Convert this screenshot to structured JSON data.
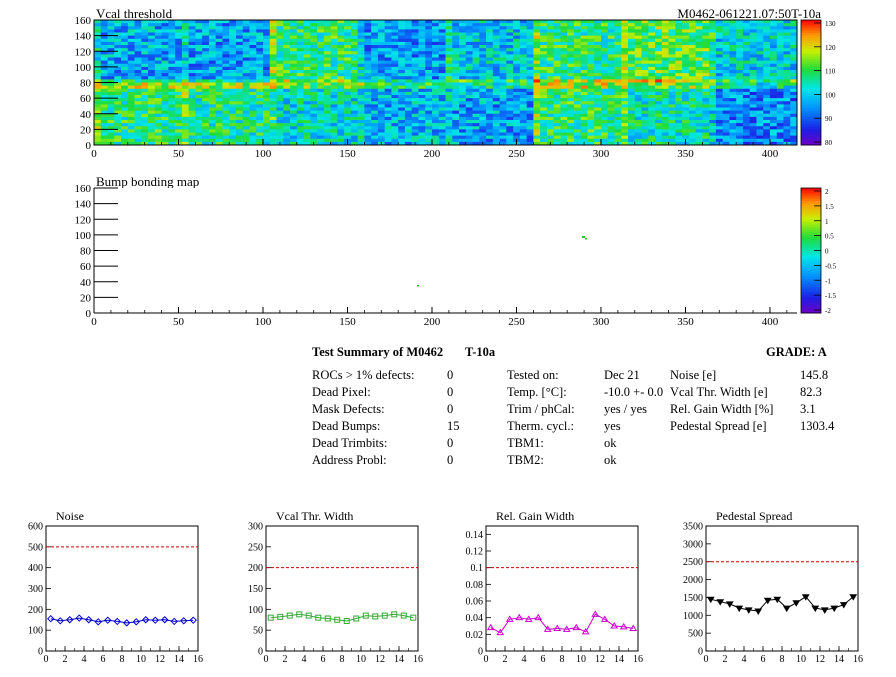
{
  "maps": [
    {
      "id": "vcal",
      "title": "Vcal threshold",
      "xticks": [
        "0",
        "50",
        "100",
        "150",
        "200",
        "250",
        "300",
        "350",
        "400"
      ],
      "yticks": [
        "0",
        "20",
        "40",
        "60",
        "80",
        "100",
        "120",
        "140",
        "160"
      ],
      "xlim": [
        0,
        416
      ],
      "ylim": [
        0,
        160
      ],
      "palette_labels": [
        "130",
        "120",
        "110",
        "100",
        "90",
        "80"
      ],
      "zlim": [
        80,
        130
      ]
    },
    {
      "id": "bump",
      "title": "Bump bonding map",
      "xticks": [
        "0",
        "50",
        "100",
        "150",
        "200",
        "250",
        "300",
        "350",
        "400"
      ],
      "yticks": [
        "0",
        "20",
        "40",
        "60",
        "80",
        "100",
        "120",
        "140",
        "160"
      ],
      "xlim": [
        0,
        416
      ],
      "ylim": [
        0,
        160
      ],
      "palette_labels": [
        "2",
        "1.5",
        "1",
        "0.5",
        "0",
        "-0.5",
        "-1",
        "-1.5",
        "-2"
      ],
      "zlim": [
        -2,
        2
      ]
    }
  ],
  "header_right": "M0462-061221.07:50T-10a",
  "summary": {
    "title": "Test Summary of M0462",
    "temp_id": "T-10a",
    "grade": "GRADE:  A",
    "col1": [
      {
        "label": "ROCs > 1% defects:",
        "value": "0"
      },
      {
        "label": "Dead Pixel:",
        "value": "0"
      },
      {
        "label": "Mask Defects:",
        "value": "0"
      },
      {
        "label": "Dead Bumps:",
        "value": "15"
      },
      {
        "label": "Dead Trimbits:",
        "value": "0"
      },
      {
        "label": "Address Probl:",
        "value": "0"
      }
    ],
    "col2": [
      {
        "label": "Tested on:",
        "value": "Dec 21"
      },
      {
        "label": "Temp. [°C]:",
        "value": "-10.0 +- 0.0"
      },
      {
        "label": "Trim / phCal:",
        "value": "yes / yes"
      },
      {
        "label": "Therm. cycl.:",
        "value": "yes"
      },
      {
        "label": "TBM1:",
        "value": "ok"
      },
      {
        "label": "TBM2:",
        "value": "ok"
      }
    ],
    "col3": [
      {
        "label": "Noise [e]",
        "value": "145.8"
      },
      {
        "label": "Vcal Thr. Width [e]",
        "value": "82.3"
      },
      {
        "label": "Rel. Gain Width [%]",
        "value": "3.1"
      },
      {
        "label": "Pedestal Spread [e]",
        "value": "1303.4"
      }
    ]
  },
  "colors": {
    "blue": "#0000cc",
    "green": "#33aa33",
    "magenta": "#cc00cc",
    "black": "#000000",
    "limit": "#cc0000"
  },
  "chart_data": [
    {
      "type": "line",
      "title": "Noise",
      "xlim": [
        0,
        16
      ],
      "ylim": [
        0,
        600
      ],
      "xticks": [
        "0",
        "2",
        "4",
        "6",
        "8",
        "10",
        "12",
        "14",
        "16"
      ],
      "yticks": [
        "0",
        "100",
        "200",
        "300",
        "400",
        "500",
        "600"
      ],
      "limit": 500,
      "color": "#0000cc",
      "marker": "diamond",
      "x": [
        0.5,
        1.5,
        2.5,
        3.5,
        4.5,
        5.5,
        6.5,
        7.5,
        8.5,
        9.5,
        10.5,
        11.5,
        12.5,
        13.5,
        14.5,
        15.5
      ],
      "y": [
        155,
        145,
        150,
        158,
        150,
        140,
        148,
        142,
        135,
        140,
        150,
        148,
        150,
        142,
        145,
        148
      ]
    },
    {
      "type": "line",
      "title": "Vcal Thr. Width",
      "xlim": [
        0,
        16
      ],
      "ylim": [
        0,
        300
      ],
      "xticks": [
        "0",
        "2",
        "4",
        "6",
        "8",
        "10",
        "12",
        "14",
        "16"
      ],
      "yticks": [
        "0",
        "50",
        "100",
        "150",
        "200",
        "250",
        "300"
      ],
      "limit": 200,
      "color": "#33aa33",
      "marker": "square",
      "x": [
        0.5,
        1.5,
        2.5,
        3.5,
        4.5,
        5.5,
        6.5,
        7.5,
        8.5,
        9.5,
        10.5,
        11.5,
        12.5,
        13.5,
        14.5,
        15.5
      ],
      "y": [
        80,
        82,
        85,
        88,
        85,
        80,
        78,
        75,
        72,
        78,
        85,
        83,
        85,
        88,
        85,
        80
      ]
    },
    {
      "type": "line",
      "title": "Rel. Gain Width",
      "xlim": [
        0,
        16
      ],
      "ylim": [
        0,
        0.15
      ],
      "xticks": [
        "0",
        "2",
        "4",
        "6",
        "8",
        "10",
        "12",
        "14",
        "16"
      ],
      "yticks": [
        "0",
        "0.02",
        "0.04",
        "0.06",
        "0.08",
        "0.1",
        "0.12",
        "0.14"
      ],
      "limit": 0.1,
      "color": "#cc00cc",
      "marker": "triangle",
      "x": [
        0.5,
        1.5,
        2.5,
        3.5,
        4.5,
        5.5,
        6.5,
        7.5,
        8.5,
        9.5,
        10.5,
        11.5,
        12.5,
        13.5,
        14.5,
        15.5
      ],
      "y": [
        0.028,
        0.022,
        0.038,
        0.04,
        0.038,
        0.04,
        0.026,
        0.027,
        0.026,
        0.028,
        0.023,
        0.044,
        0.038,
        0.03,
        0.029,
        0.027
      ]
    },
    {
      "type": "line",
      "title": "Pedestal Spread",
      "xlim": [
        0,
        16
      ],
      "ylim": [
        0,
        3500
      ],
      "xticks": [
        "0",
        "2",
        "4",
        "6",
        "8",
        "10",
        "12",
        "14",
        "16"
      ],
      "yticks": [
        "0",
        "500",
        "1000",
        "1500",
        "2000",
        "2500",
        "3000",
        "3500"
      ],
      "limit": 2500,
      "color": "#000000",
      "marker": "triangle-down",
      "x": [
        0.5,
        1.5,
        2.5,
        3.5,
        4.5,
        5.5,
        6.5,
        7.5,
        8.5,
        9.5,
        10.5,
        11.5,
        12.5,
        13.5,
        14.5,
        15.5
      ],
      "y": [
        1450,
        1380,
        1320,
        1200,
        1150,
        1120,
        1420,
        1450,
        1200,
        1350,
        1520,
        1200,
        1150,
        1200,
        1300,
        1520
      ]
    }
  ]
}
